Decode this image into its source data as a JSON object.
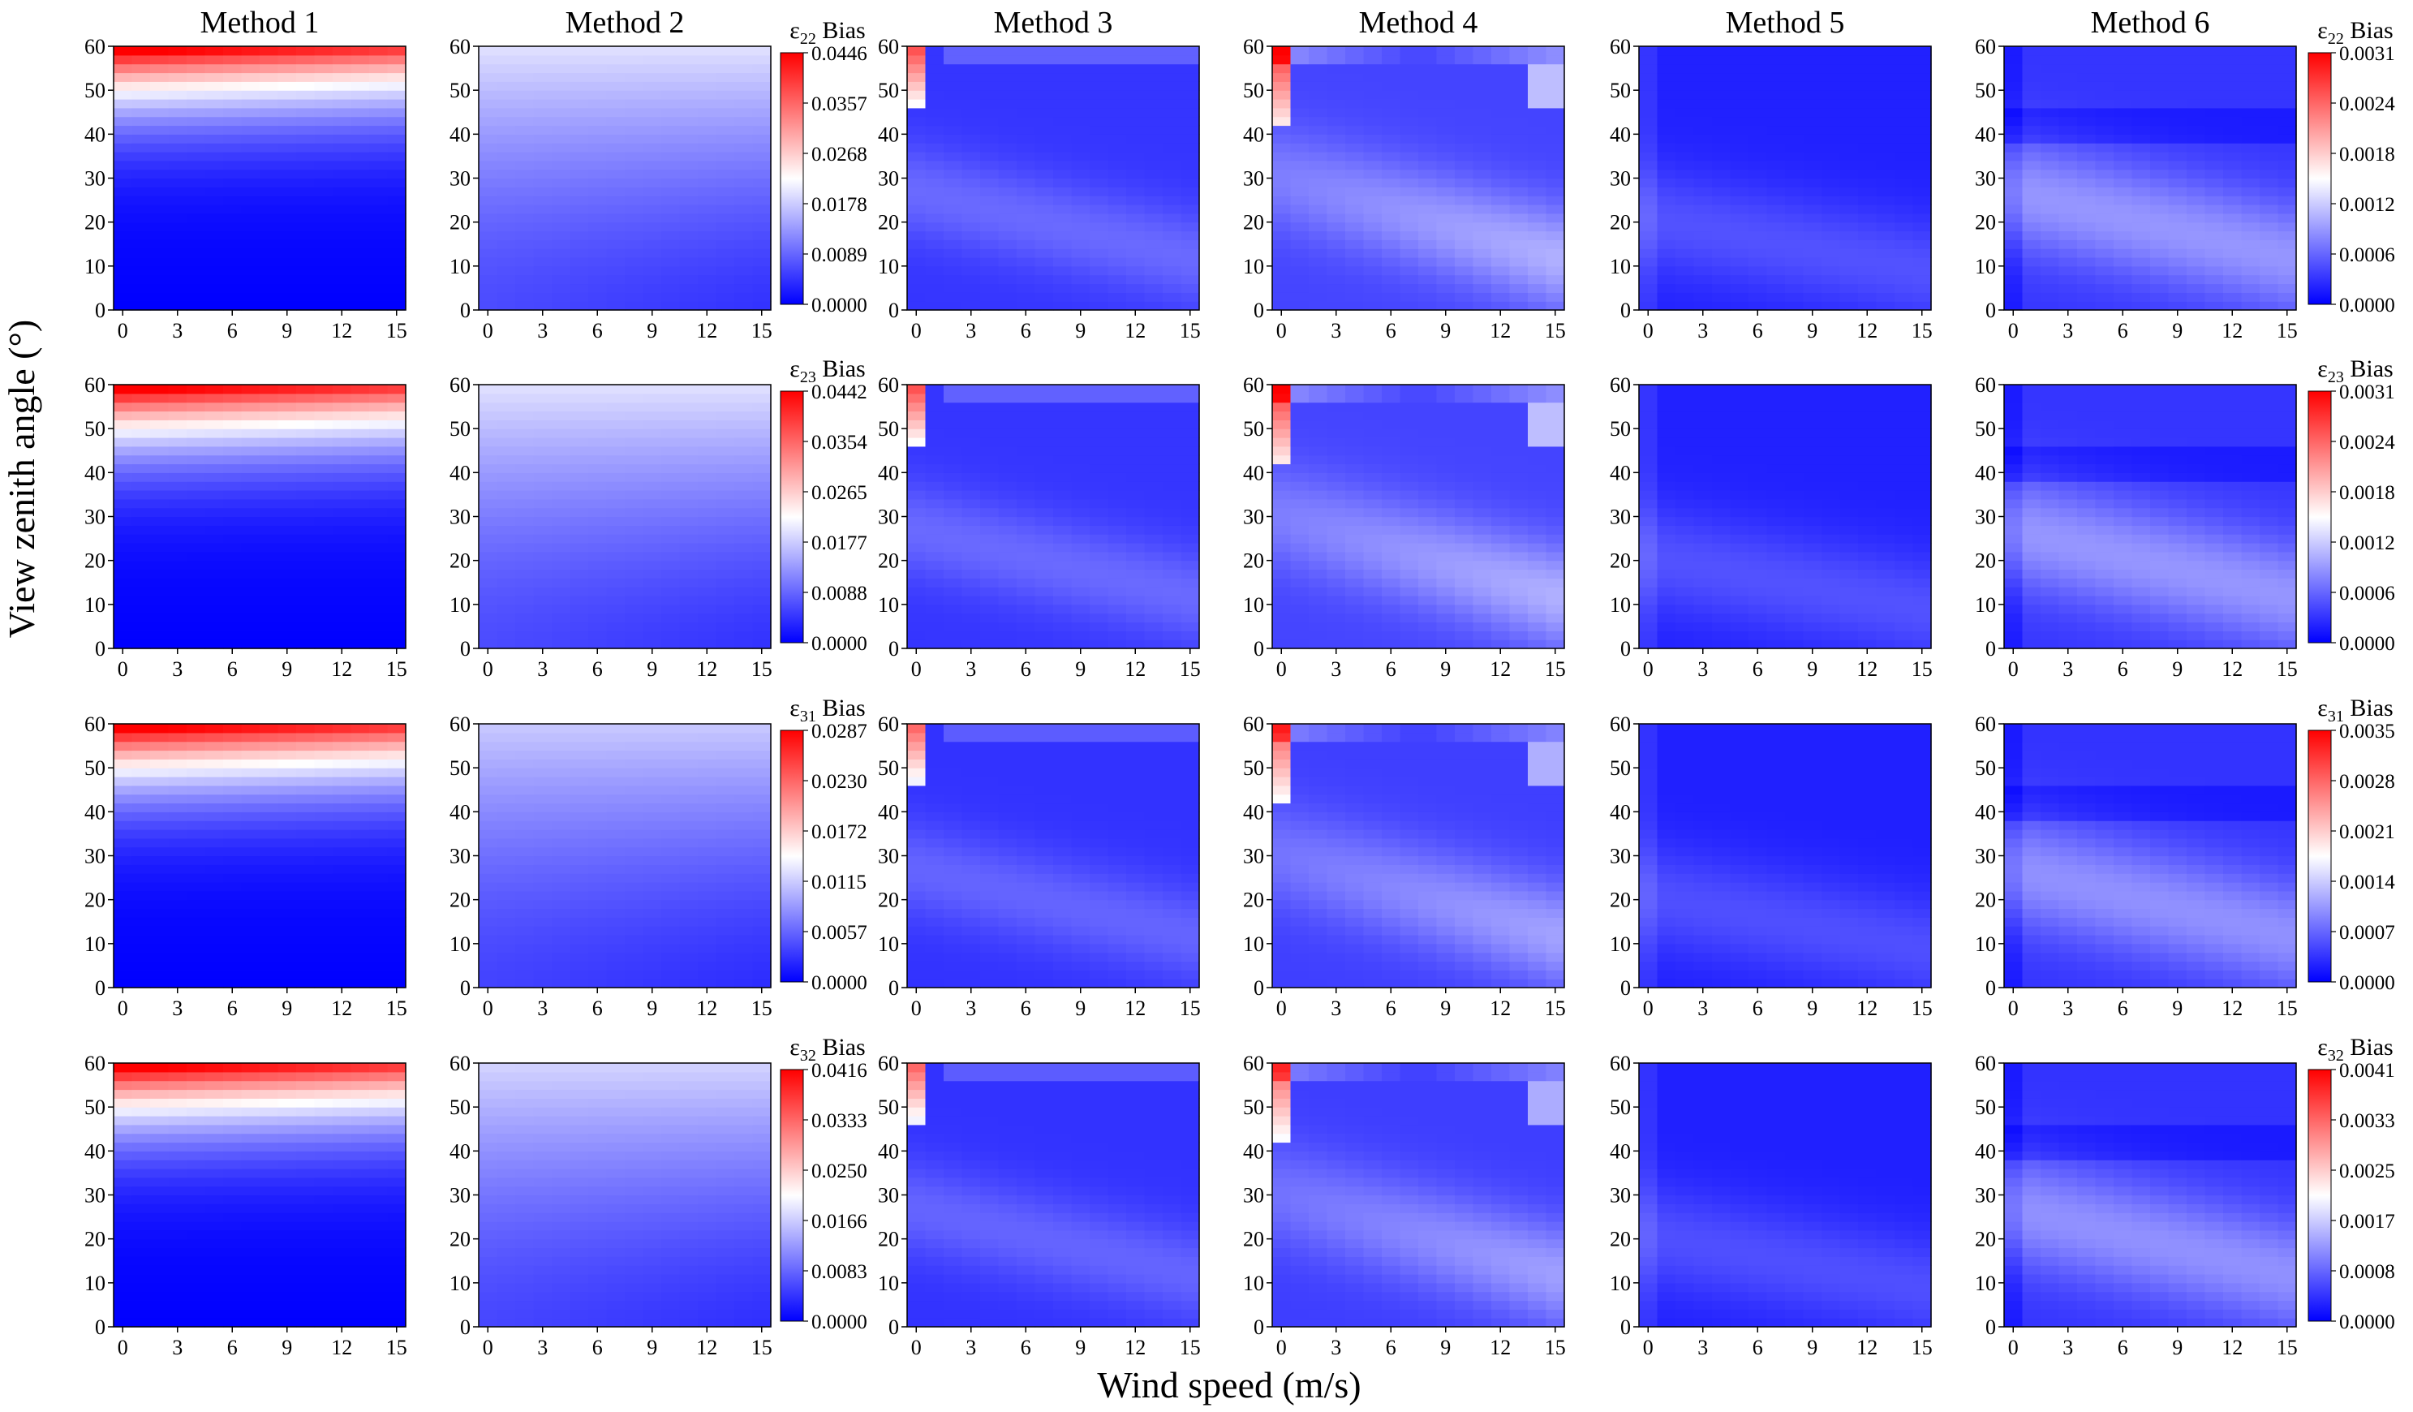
{
  "figure": {
    "ylabel": "View zenith angle (°)",
    "xlabel": "Wind speed (m/s)",
    "column_titles": [
      "Method 1",
      "Method 2",
      "Method 3",
      "Method 4",
      "Method 5",
      "Method 6"
    ]
  },
  "colormap": {
    "low": "#0000ff",
    "mid": "#ffffff",
    "high": "#ff0000"
  },
  "chart_data": {
    "type": "heatmap",
    "x_ticks": [
      0,
      3,
      6,
      9,
      12,
      15
    ],
    "y_ticks": [
      0,
      10,
      20,
      30,
      40,
      50,
      60
    ],
    "xlim": [
      -0.5,
      15.5
    ],
    "ylim": [
      0,
      60
    ],
    "rows": [
      {
        "symbol": "ε",
        "sub": "22",
        "suffix": " Bias",
        "colorbar_left": [
          "0.0446",
          "0.0357",
          "0.0268",
          "0.0178",
          "0.0089",
          "0.0000"
        ],
        "colorbar_left_max": 0.0446,
        "colorbar_right": [
          "0.0031",
          "0.0024",
          "0.0018",
          "0.0012",
          "0.0006",
          "0.0000"
        ],
        "colorbar_right_max": 0.0031
      },
      {
        "symbol": "ε",
        "sub": "23",
        "suffix": " Bias",
        "colorbar_left": [
          "0.0442",
          "0.0354",
          "0.0265",
          "0.0177",
          "0.0088",
          "0.0000"
        ],
        "colorbar_left_max": 0.0442,
        "colorbar_right": [
          "0.0031",
          "0.0024",
          "0.0018",
          "0.0012",
          "0.0006",
          "0.0000"
        ],
        "colorbar_right_max": 0.0031
      },
      {
        "symbol": "ε",
        "sub": "31",
        "suffix": " Bias",
        "colorbar_left": [
          "0.0287",
          "0.0230",
          "0.0172",
          "0.0115",
          "0.0057",
          "0.0000"
        ],
        "colorbar_left_max": 0.0287,
        "colorbar_right": [
          "0.0035",
          "0.0028",
          "0.0021",
          "0.0014",
          "0.0007",
          "0.0000"
        ],
        "colorbar_right_max": 0.0035
      },
      {
        "symbol": "ε",
        "sub": "32",
        "suffix": " Bias",
        "colorbar_left": [
          "0.0416",
          "0.0333",
          "0.0250",
          "0.0166",
          "0.0083",
          "0.0000"
        ],
        "colorbar_left_max": 0.0416,
        "colorbar_right": [
          "0.0041",
          "0.0033",
          "0.0025",
          "0.0017",
          "0.0008",
          "0.0000"
        ],
        "colorbar_right_max": 0.0041
      }
    ],
    "panel_intensity": [
      [
        1.0,
        0.95,
        0.55,
        0.85,
        0.35,
        0.55
      ],
      [
        1.0,
        0.95,
        0.55,
        0.85,
        0.35,
        0.55
      ],
      [
        1.0,
        0.6,
        0.4,
        0.6,
        0.25,
        0.45
      ],
      [
        1.0,
        0.75,
        0.4,
        0.55,
        0.25,
        0.45
      ]
    ]
  }
}
